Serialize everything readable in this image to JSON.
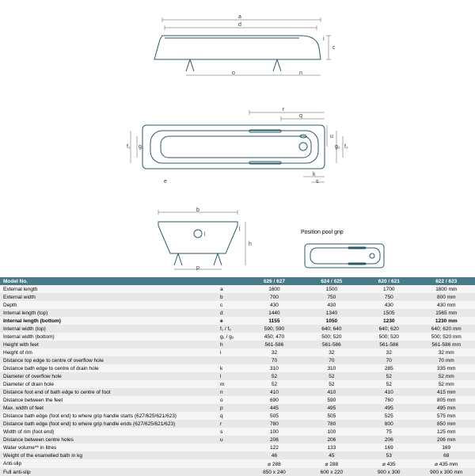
{
  "grip_caption": "Position pool grip",
  "headers": {
    "model": "Model No.",
    "c1": "626 / 627",
    "c2": "624 / 625",
    "c3": "620 / 621",
    "c4": "622 / 623"
  },
  "rows": [
    {
      "label": "External length",
      "sym": "a",
      "v": [
        "1600",
        "1500",
        "1700",
        "1800 mm"
      ],
      "bold": false
    },
    {
      "label": "External width",
      "sym": "b",
      "v": [
        "700",
        "750",
        "750",
        "800 mm"
      ],
      "bold": false
    },
    {
      "label": "Depth",
      "sym": "c",
      "v": [
        "430",
        "430",
        "430",
        "430 mm"
      ],
      "bold": false
    },
    {
      "label": "Internal length (top)",
      "sym": "d",
      "v": [
        "1440",
        "1340",
        "1505",
        "1565 mm"
      ],
      "bold": false
    },
    {
      "label": "Internal length (bottom)",
      "sym": "e",
      "v": [
        "1155",
        "1050",
        "1230",
        "1230 mm"
      ],
      "bold": true
    },
    {
      "label": "Internal width (top)",
      "sym": "f₁ / f₂",
      "v": [
        "590; 590",
        "640; 640",
        "640; 620",
        "640; 620 mm"
      ],
      "bold": false
    },
    {
      "label": "Internal width (bottom)",
      "sym": "g₁ / g₂",
      "v": [
        "450; 470",
        "500; 520",
        "500; 520",
        "500; 520 mm"
      ],
      "bold": false
    },
    {
      "label": "Height with feet",
      "sym": "h",
      "v": [
        "561-586",
        "561-586",
        "561-586",
        "561-586 mm"
      ],
      "bold": false
    },
    {
      "label": "Height of rim",
      "sym": "i",
      "v": [
        "32",
        "32",
        "32",
        "32 mm"
      ],
      "bold": false
    },
    {
      "label": "Distance top edge to centre of overflow hole",
      "sym": "",
      "v": [
        "70",
        "70",
        "70",
        "70 mm"
      ],
      "bold": false
    },
    {
      "label": "Distance bath edge to centre of drain hole",
      "sym": "k",
      "v": [
        "310",
        "310",
        "285",
        "335 mm"
      ],
      "bold": false
    },
    {
      "label": "Diameter of overflow hole",
      "sym": "l",
      "v": [
        "52",
        "52",
        "52",
        "52 mm"
      ],
      "bold": false
    },
    {
      "label": "Diameter of drain hole",
      "sym": "m",
      "v": [
        "52",
        "52",
        "52",
        "52 mm"
      ],
      "bold": false
    },
    {
      "label": "Distance foot end of bath edge to centre of foot",
      "sym": "n",
      "v": [
        "410",
        "410",
        "410",
        "415 mm"
      ],
      "bold": false
    },
    {
      "label": "Distance between the feet",
      "sym": "o",
      "v": [
        "690",
        "590",
        "760",
        "805 mm"
      ],
      "bold": false
    },
    {
      "label": "Max. width of feet",
      "sym": "p",
      "v": [
        "445",
        "495",
        "495",
        "495 mm"
      ],
      "bold": false
    },
    {
      "label": "Distance bath edge (foot end) to where grip handle starts (627/625/621/623)",
      "sym": "q",
      "v": [
        "505",
        "505",
        "525",
        "575 mm"
      ],
      "bold": false
    },
    {
      "label": "Distance bath edge (foot end) to where grip handle ends (627/625/621/623)",
      "sym": "r",
      "v": [
        "780",
        "780",
        "800",
        "850 mm"
      ],
      "bold": false
    },
    {
      "label": "Width of rim (foot end)",
      "sym": "s",
      "v": [
        "100",
        "100",
        "75",
        "125 mm"
      ],
      "bold": false
    },
    {
      "label": "Distance between centre holes",
      "sym": "u",
      "v": [
        "206",
        "206",
        "206",
        "206 mm"
      ],
      "bold": false
    },
    {
      "label": "Water volume** in litres",
      "sym": "",
      "v": [
        "122",
        "133",
        "169",
        "169"
      ],
      "bold": false
    },
    {
      "label": "Weight of the enamelled bath in kg",
      "sym": "",
      "v": [
        "46",
        "45",
        "53",
        "68"
      ],
      "bold": false
    },
    {
      "label": "Anti-slip",
      "sym": "",
      "v": [
        "⌀ 288",
        "⌀ 288",
        "⌀ 435",
        "⌀ 435 mm"
      ],
      "bold": false
    },
    {
      "label": "Full anti-slip",
      "sym": "",
      "v": [
        "850 x 240",
        "600 x 220",
        "900 x 300",
        "900 x 300 mm"
      ],
      "bold": false
    }
  ],
  "stroke": "#2a5a6a",
  "stroke_thin": "#555"
}
